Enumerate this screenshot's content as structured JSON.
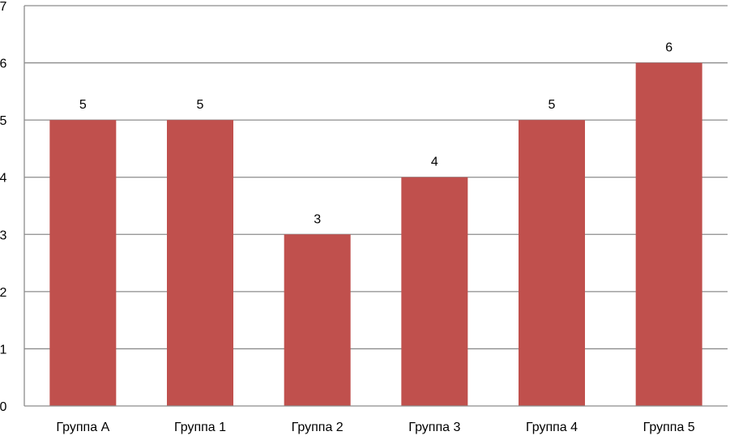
{
  "chart_data": {
    "type": "bar",
    "categories": [
      "Группа А",
      "Группа 1",
      "Группа 2",
      "Группа 3",
      "Группа 4",
      "Группа 5"
    ],
    "values": [
      5,
      5,
      3,
      4,
      5,
      6
    ],
    "data_labels": [
      "5",
      "5",
      "3",
      "4",
      "5",
      "6"
    ],
    "y_ticks": [
      "0",
      "1",
      "2",
      "3",
      "4",
      "5",
      "6",
      "7"
    ],
    "ylim": [
      0,
      7
    ],
    "grid": true,
    "legend": "none",
    "bar_color": "#C0504D",
    "gridline_color": "#8C8C8C",
    "axis_color": "#8C8C8C"
  }
}
